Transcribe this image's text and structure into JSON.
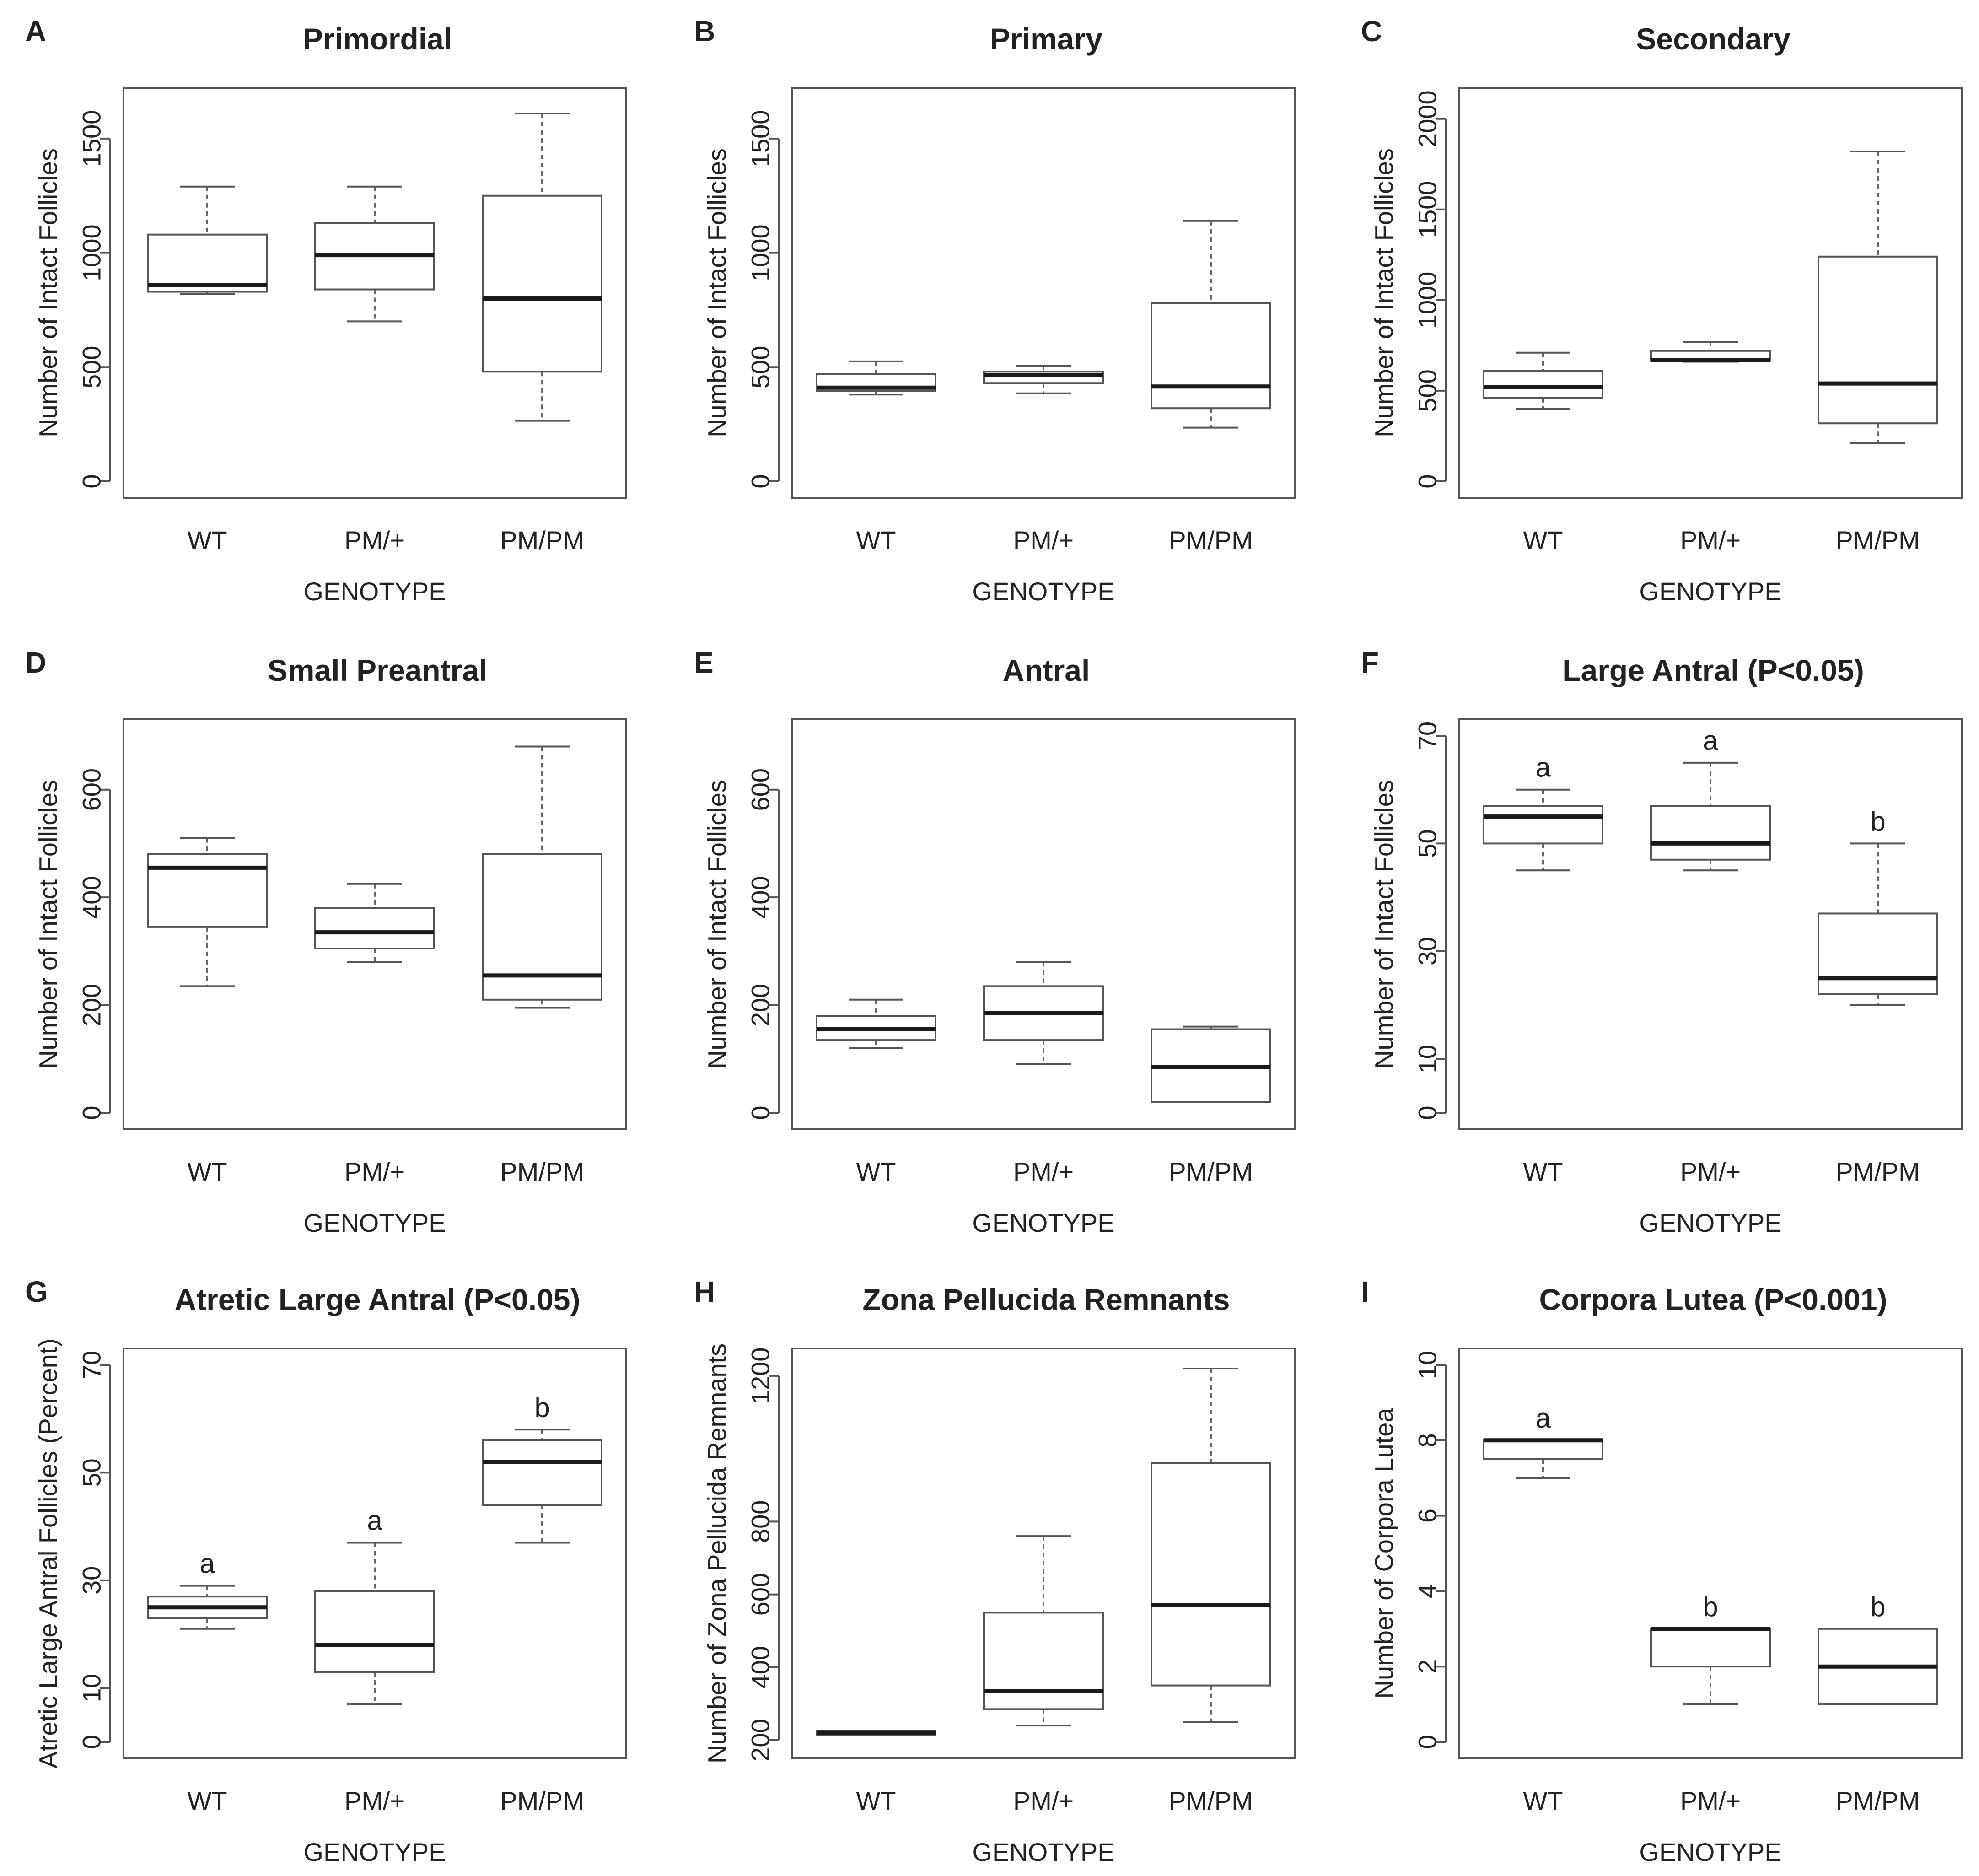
{
  "chart_data": [
    {
      "panel": "A",
      "type": "box",
      "title": "Primordial",
      "xlabel": "GENOTYPE",
      "ylabel": "Number of Intact Follicles",
      "ylim": [
        0,
        1650
      ],
      "yticks": [
        0,
        500,
        1000,
        1500
      ],
      "categories": [
        "WT",
        "PM/+",
        "PM/PM"
      ],
      "boxes": [
        {
          "min": 820,
          "q1": 830,
          "median": 860,
          "q3": 1080,
          "max": 1290
        },
        {
          "min": 700,
          "q1": 840,
          "median": 990,
          "q3": 1130,
          "max": 1290
        },
        {
          "min": 265,
          "q1": 480,
          "median": 800,
          "q3": 1250,
          "max": 1610
        }
      ],
      "group_letters": [
        "",
        "",
        ""
      ]
    },
    {
      "panel": "B",
      "type": "box",
      "title": "Primary",
      "xlabel": "GENOTYPE",
      "ylabel": "Number of Intact Follicles",
      "ylim": [
        0,
        1650
      ],
      "yticks": [
        0,
        500,
        1000,
        1500
      ],
      "categories": [
        "WT",
        "PM/+",
        "PM/PM"
      ],
      "boxes": [
        {
          "min": 380,
          "q1": 395,
          "median": 410,
          "q3": 470,
          "max": 525
        },
        {
          "min": 385,
          "q1": 430,
          "median": 465,
          "q3": 480,
          "max": 505
        },
        {
          "min": 235,
          "q1": 320,
          "median": 415,
          "q3": 780,
          "max": 1140
        }
      ],
      "group_letters": [
        "",
        "",
        ""
      ]
    },
    {
      "panel": "C",
      "type": "box",
      "title": "Secondary",
      "xlabel": "GENOTYPE",
      "ylabel": "Number of Intact Follicles",
      "ylim": [
        0,
        2080
      ],
      "yticks": [
        0,
        500,
        1000,
        1500,
        2000
      ],
      "categories": [
        "WT",
        "PM/+",
        "PM/PM"
      ],
      "boxes": [
        {
          "min": 400,
          "q1": 460,
          "median": 520,
          "q3": 610,
          "max": 710
        },
        {
          "min": 660,
          "q1": 665,
          "median": 670,
          "q3": 720,
          "max": 770
        },
        {
          "min": 210,
          "q1": 320,
          "median": 540,
          "q3": 1240,
          "max": 1820
        }
      ],
      "group_letters": [
        "",
        "",
        ""
      ]
    },
    {
      "panel": "D",
      "type": "box",
      "title": "Small Preantral",
      "xlabel": "GENOTYPE",
      "ylabel": "Number of Intact Follicles",
      "ylim": [
        0,
        700
      ],
      "yticks": [
        0,
        200,
        400,
        600
      ],
      "categories": [
        "WT",
        "PM/+",
        "PM/PM"
      ],
      "boxes": [
        {
          "min": 235,
          "q1": 345,
          "median": 455,
          "q3": 480,
          "max": 510
        },
        {
          "min": 280,
          "q1": 305,
          "median": 335,
          "q3": 380,
          "max": 425
        },
        {
          "min": 195,
          "q1": 210,
          "median": 255,
          "q3": 480,
          "max": 680
        }
      ],
      "group_letters": [
        "",
        "",
        ""
      ]
    },
    {
      "panel": "E",
      "type": "box",
      "title": "Antral",
      "xlabel": "GENOTYPE",
      "ylabel": "Number of Intact Follicles",
      "ylim": [
        0,
        700
      ],
      "yticks": [
        0,
        200,
        400,
        600
      ],
      "categories": [
        "WT",
        "PM/+",
        "PM/PM"
      ],
      "boxes": [
        {
          "min": 120,
          "q1": 135,
          "median": 155,
          "q3": 180,
          "max": 210
        },
        {
          "min": 90,
          "q1": 135,
          "median": 185,
          "q3": 235,
          "max": 280
        },
        {
          "min": 20,
          "q1": 20,
          "median": 85,
          "q3": 155,
          "max": 160
        }
      ],
      "group_letters": [
        "",
        "",
        ""
      ]
    },
    {
      "panel": "F",
      "type": "box",
      "title": "Large Antral (P<0.05)",
      "xlabel": "GENOTYPE",
      "ylabel": "Number of Intact Follicles",
      "ylim": [
        0,
        70
      ],
      "yticks": [
        0,
        10,
        30,
        50,
        70
      ],
      "categories": [
        "WT",
        "PM/+",
        "PM/PM"
      ],
      "boxes": [
        {
          "min": 45,
          "q1": 50,
          "median": 55,
          "q3": 57,
          "max": 60
        },
        {
          "min": 45,
          "q1": 47,
          "median": 50,
          "q3": 57,
          "max": 65
        },
        {
          "min": 20,
          "q1": 22,
          "median": 25,
          "q3": 37,
          "max": 50
        }
      ],
      "group_letters": [
        "a",
        "a",
        "b"
      ]
    },
    {
      "panel": "G",
      "type": "box",
      "title": "Atretic Large Antral (P<0.05)",
      "xlabel": "GENOTYPE",
      "ylabel": "Atretic Large Antral Follicles (Percent)",
      "ylim": [
        0,
        70
      ],
      "yticks": [
        0,
        10,
        30,
        50,
        70
      ],
      "categories": [
        "WT",
        "PM/+",
        "PM/PM"
      ],
      "boxes": [
        {
          "min": 21,
          "q1": 23,
          "median": 25,
          "q3": 27,
          "max": 29
        },
        {
          "min": 7,
          "q1": 13,
          "median": 18,
          "q3": 28,
          "max": 37
        },
        {
          "min": 37,
          "q1": 44,
          "median": 52,
          "q3": 56,
          "max": 58
        }
      ],
      "group_letters": [
        "a",
        "a",
        "b"
      ]
    },
    {
      "panel": "H",
      "type": "box",
      "title": "Zona Pellucida Remnants",
      "xlabel": "GENOTYPE",
      "ylabel": "Number of Zona Pellucida Remnants",
      "ylim": [
        195,
        1230
      ],
      "yticks": [
        200,
        400,
        600,
        800,
        1200
      ],
      "categories": [
        "WT",
        "PM/+",
        "PM/PM"
      ],
      "boxes": [
        {
          "min": 215,
          "q1": 215,
          "median": 220,
          "q3": 225,
          "max": 225
        },
        {
          "min": 240,
          "q1": 285,
          "median": 335,
          "q3": 550,
          "max": 760
        },
        {
          "min": 250,
          "q1": 350,
          "median": 570,
          "q3": 960,
          "max": 1220
        }
      ],
      "group_letters": [
        "",
        "",
        ""
      ]
    },
    {
      "panel": "I",
      "type": "box",
      "title": "Corpora Lutea (P<0.001)",
      "xlabel": "GENOTYPE",
      "ylabel": "Number of Corpora Lutea",
      "ylim": [
        0,
        10
      ],
      "yticks": [
        0,
        2,
        4,
        6,
        8,
        10
      ],
      "categories": [
        "WT",
        "PM/+",
        "PM/PM"
      ],
      "boxes": [
        {
          "min": 7,
          "q1": 7.5,
          "median": 8,
          "q3": 8,
          "max": 8
        },
        {
          "min": 1,
          "q1": 2,
          "median": 3,
          "q3": 3,
          "max": 3
        },
        {
          "min": 1,
          "q1": 1,
          "median": 2,
          "q3": 3,
          "max": 3
        }
      ],
      "group_letters": [
        "a",
        "b",
        "b"
      ]
    }
  ]
}
